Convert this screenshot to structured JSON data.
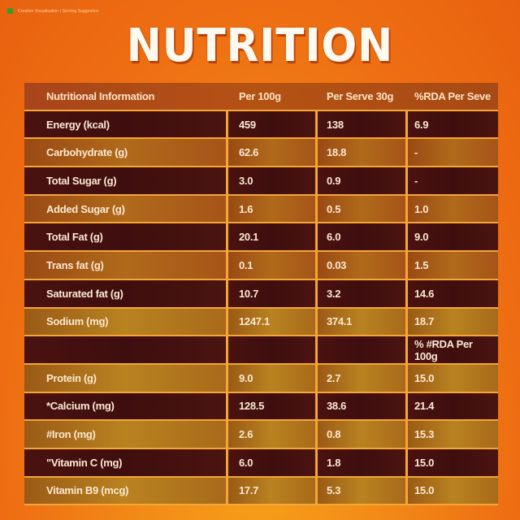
{
  "caption": {
    "text": "Creative Visualisation | Serving Suggestion"
  },
  "title": "NUTRITION",
  "table": {
    "headers": [
      "Nutritional Information",
      "Per 100g",
      "Per Serve 30g",
      "%RDA Per Seve"
    ],
    "rows": [
      {
        "style": "dark",
        "cells": [
          "Energy (kcal)",
          "459",
          "138",
          "6.9"
        ]
      },
      {
        "style": "light",
        "cells": [
          "Carbohydrate (g)",
          "62.6",
          "18.8",
          "-"
        ]
      },
      {
        "style": "dark",
        "cells": [
          "Total Sugar (g)",
          "3.0",
          "0.9",
          "-"
        ]
      },
      {
        "style": "light",
        "cells": [
          "Added Sugar (g)",
          "1.6",
          "0.5",
          "1.0"
        ]
      },
      {
        "style": "dark",
        "cells": [
          "Total Fat (g)",
          "20.1",
          "6.0",
          "9.0"
        ]
      },
      {
        "style": "light",
        "cells": [
          "Trans fat (g)",
          "0.1",
          "0.03",
          "1.5"
        ]
      },
      {
        "style": "dark",
        "cells": [
          "Saturated fat (g)",
          "10.7",
          "3.2",
          "14.6"
        ]
      },
      {
        "style": "light gold",
        "cells": [
          "Sodium (mg)",
          "1247.1",
          "374.1",
          "18.7"
        ]
      },
      {
        "style": "dark",
        "cells": [
          "",
          "",
          "",
          "% #RDA Per 100g"
        ]
      },
      {
        "style": "light gold",
        "cells": [
          "Protein (g)",
          "9.0",
          "2.7",
          "15.0"
        ]
      },
      {
        "style": "dark",
        "cells": [
          "*Calcium (mg)",
          "128.5",
          "38.6",
          "21.4"
        ]
      },
      {
        "style": "light gold",
        "cells": [
          "#Iron (mg)",
          "2.6",
          "0.8",
          "15.3"
        ]
      },
      {
        "style": "dark",
        "cells": [
          "\"Vitamin C (mg)",
          "6.0",
          "1.8",
          "15.0"
        ]
      },
      {
        "style": "light gold",
        "cells": [
          "Vitamin B9 (mcg)",
          "17.7",
          "5.3",
          "15.0"
        ]
      }
    ]
  },
  "colors": {
    "background": "#ee6d12",
    "dark_row": "#3e0e0e",
    "light_row": "#b06a1a",
    "grid": "#f5a636",
    "text": "#fbe9d2"
  }
}
